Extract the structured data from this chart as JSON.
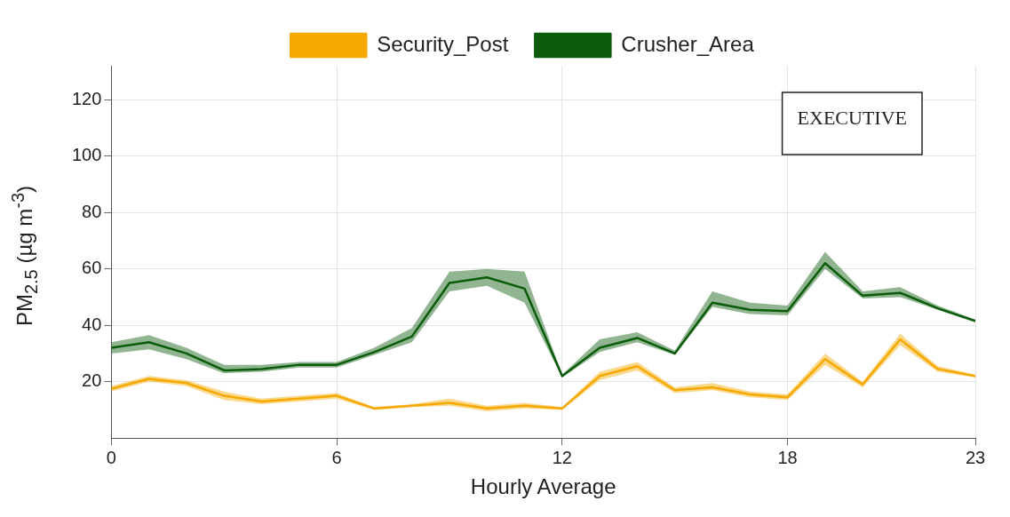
{
  "chart_data": {
    "type": "line",
    "xlabel": "Hourly Average",
    "ylabel": "PM$_{2.5}$ (µg m$^{-3}$)",
    "x": [
      0,
      1,
      2,
      3,
      4,
      5,
      6,
      7,
      8,
      9,
      10,
      11,
      12,
      13,
      14,
      15,
      16,
      17,
      18,
      19,
      20,
      21,
      22,
      23
    ],
    "xlim": [
      0,
      23
    ],
    "xticks": [
      0,
      6,
      12,
      18,
      23
    ],
    "ylim": [
      0,
      132
    ],
    "yticks": [
      20,
      40,
      60,
      80,
      100,
      120
    ],
    "grid": true,
    "legend": "top",
    "marker": "none",
    "line_style": "solid",
    "annotations": [
      "EXECUTIVE"
    ],
    "series": [
      {
        "name": "Security_Post",
        "color": "#f5a800",
        "values": [
          17.5,
          21,
          19.5,
          15,
          13,
          14,
          15,
          10.5,
          11.5,
          12.5,
          10.5,
          11.5,
          10.5,
          22,
          25.5,
          17,
          18,
          15.5,
          14.5,
          28,
          19,
          35,
          24.5,
          22
        ],
        "lower": [
          16.5,
          20,
          18.5,
          13.5,
          12,
          13,
          14,
          10,
          11,
          11.5,
          9.5,
          10.5,
          10,
          20.5,
          24,
          16,
          17,
          14.5,
          13.5,
          26,
          18,
          33,
          23.5,
          21.5
        ],
        "upper": [
          18.5,
          22,
          20.5,
          16.5,
          14,
          15,
          16,
          11,
          12,
          14,
          11.5,
          12.5,
          11,
          23.5,
          27,
          18,
          19.5,
          16.5,
          15.5,
          30,
          20,
          37,
          25.5,
          22.5
        ]
      },
      {
        "name": "Crusher_Area",
        "color": "#0a5c0a",
        "values": [
          32,
          34,
          30,
          24,
          24.5,
          26,
          26,
          30.5,
          36,
          55,
          57,
          53,
          22,
          32,
          35.5,
          30,
          48,
          45.5,
          45,
          62,
          50.5,
          51.5,
          46,
          41.5
        ],
        "lower": [
          30,
          31.5,
          28,
          23,
          23.5,
          25,
          25,
          29.5,
          34,
          52,
          54,
          48,
          21.5,
          30.5,
          34,
          29.5,
          46.5,
          44,
          43.5,
          60,
          49.5,
          50,
          45.5,
          41
        ],
        "upper": [
          34,
          36.5,
          32,
          26,
          26,
          27,
          27,
          32,
          39,
          59,
          60,
          59,
          22.5,
          35,
          37.5,
          31,
          52,
          48,
          47,
          66,
          52,
          53.5,
          47,
          42
        ]
      }
    ]
  }
}
